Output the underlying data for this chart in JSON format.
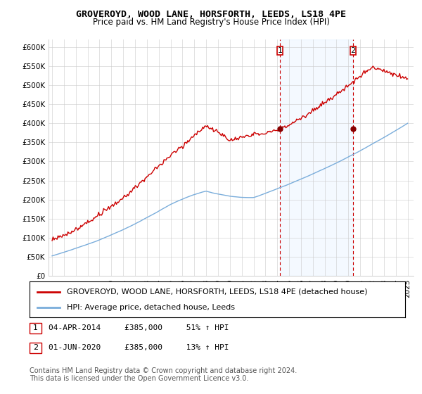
{
  "title": "GROVEROYD, WOOD LANE, HORSFORTH, LEEDS, LS18 4PE",
  "subtitle": "Price paid vs. HM Land Registry's House Price Index (HPI)",
  "ylabel_ticks": [
    "£0",
    "£50K",
    "£100K",
    "£150K",
    "£200K",
    "£250K",
    "£300K",
    "£350K",
    "£400K",
    "£450K",
    "£500K",
    "£550K",
    "£600K"
  ],
  "ytick_values": [
    0,
    50000,
    100000,
    150000,
    200000,
    250000,
    300000,
    350000,
    400000,
    450000,
    500000,
    550000,
    600000
  ],
  "x_start_year": 1995,
  "x_end_year": 2025,
  "sale1": {
    "year": 2014.25,
    "price": 385000,
    "label": "1",
    "pct": "51% ↑ HPI",
    "display": "04-APR-2014"
  },
  "sale2": {
    "year": 2020.42,
    "price": 385000,
    "label": "2",
    "pct": "13% ↑ HPI",
    "display": "01-JUN-2020"
  },
  "legend_line1": "GROVEROYD, WOOD LANE, HORSFORTH, LEEDS, LS18 4PE (detached house)",
  "legend_line2": "HPI: Average price, detached house, Leeds",
  "table_row1": "04-APR-2014     £385,000     51% ↑ HPI",
  "table_row2": "01-JUN-2020     £385,000     13% ↑ HPI",
  "footer1": "Contains HM Land Registry data © Crown copyright and database right 2024.",
  "footer2": "This data is licensed under the Open Government Licence v3.0.",
  "sale_color": "#cc0000",
  "hpi_color": "#7aaddb",
  "vline_color": "#cc0000",
  "shaded_color": "#ddeeff",
  "title_fontsize": 9.5,
  "subtitle_fontsize": 8.5,
  "tick_fontsize": 7.5,
  "legend_fontsize": 8,
  "footer_fontsize": 7
}
